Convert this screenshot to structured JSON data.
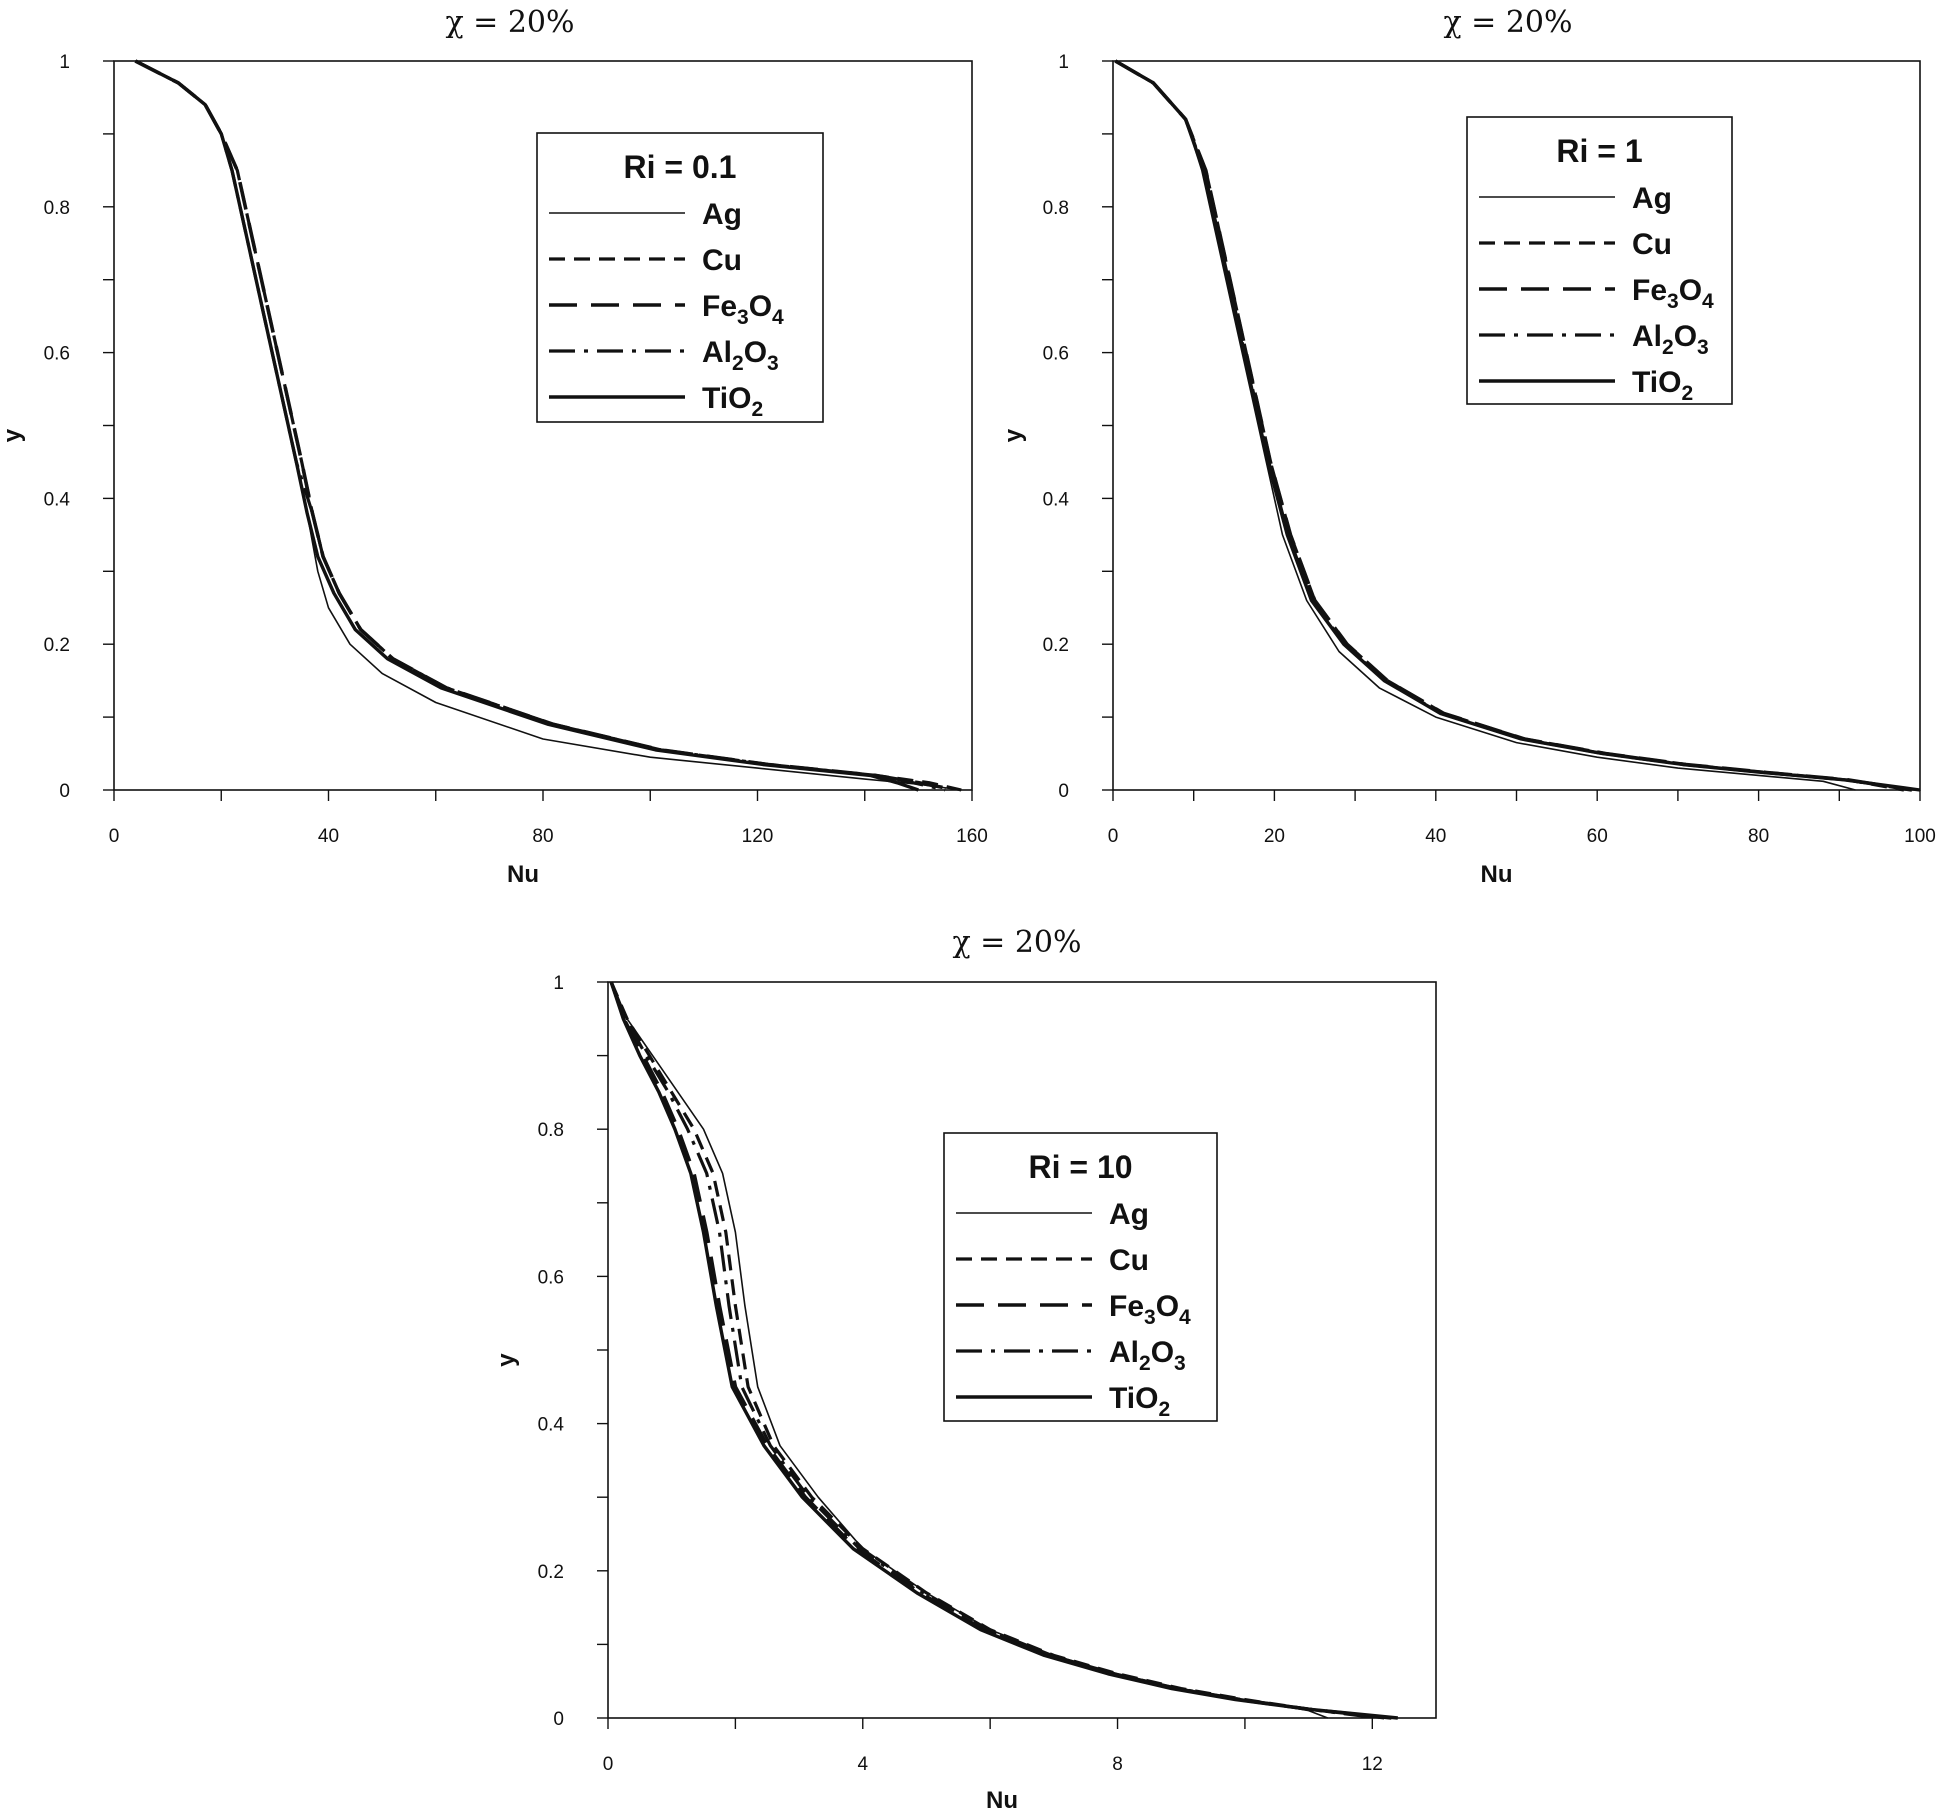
{
  "chart_data": [
    {
      "type": "line",
      "title": "χ = 20%",
      "xlabel": "Nu",
      "ylabel": "y",
      "xlim": [
        0,
        160
      ],
      "ylim": [
        0,
        1
      ],
      "xticks": [
        0,
        40,
        80,
        120,
        160
      ],
      "yticks": [
        0,
        0.2,
        0.4,
        0.6,
        0.8,
        1
      ],
      "legend_title": "Ri = 0.1",
      "legend_position": "top-right",
      "series": [
        {
          "name": "Ag",
          "style": "solid-thin",
          "x": [
            4,
            12,
            17,
            20,
            22,
            25,
            28,
            31,
            34,
            36,
            38,
            40,
            44,
            50,
            60,
            80,
            100,
            120,
            140,
            150,
            158
          ],
          "y": [
            1,
            0.97,
            0.94,
            0.9,
            0.85,
            0.75,
            0.65,
            0.55,
            0.45,
            0.38,
            0.3,
            0.25,
            0.2,
            0.16,
            0.12,
            0.07,
            0.045,
            0.03,
            0.015,
            0.008,
            0
          ]
        },
        {
          "name": "Cu",
          "style": "dashed",
          "x": [
            4,
            12,
            17,
            20,
            23,
            26,
            29,
            32,
            35,
            37,
            39,
            42,
            46,
            52,
            62,
            82,
            102,
            122,
            142,
            152,
            158
          ],
          "y": [
            1,
            0.97,
            0.94,
            0.9,
            0.85,
            0.75,
            0.65,
            0.55,
            0.45,
            0.38,
            0.32,
            0.27,
            0.22,
            0.18,
            0.14,
            0.09,
            0.055,
            0.035,
            0.02,
            0.01,
            0
          ]
        },
        {
          "name": "Fe3O4",
          "style": "long-dash",
          "x": [
            4,
            12,
            17,
            20,
            23,
            26,
            29,
            32,
            35,
            37,
            39,
            42,
            46,
            52,
            62,
            82,
            102,
            122,
            142,
            150,
            157
          ],
          "y": [
            1,
            0.97,
            0.94,
            0.9,
            0.85,
            0.75,
            0.65,
            0.55,
            0.45,
            0.38,
            0.32,
            0.27,
            0.22,
            0.18,
            0.14,
            0.09,
            0.055,
            0.035,
            0.02,
            0.01,
            0
          ]
        },
        {
          "name": "Al2O3",
          "style": "dash-dot",
          "x": [
            4,
            12,
            17,
            20,
            22,
            25,
            28,
            31,
            34,
            37,
            39,
            42,
            46,
            52,
            62,
            82,
            102,
            122,
            142,
            149,
            155
          ],
          "y": [
            1,
            0.97,
            0.94,
            0.9,
            0.85,
            0.75,
            0.65,
            0.55,
            0.45,
            0.38,
            0.32,
            0.27,
            0.22,
            0.18,
            0.14,
            0.09,
            0.055,
            0.035,
            0.02,
            0.01,
            0
          ]
        },
        {
          "name": "TiO2",
          "style": "solid-thick",
          "x": [
            4,
            12,
            17,
            20,
            22,
            25,
            28,
            31,
            34,
            36,
            38,
            41,
            45,
            51,
            61,
            81,
            101,
            121,
            141,
            146,
            150
          ],
          "y": [
            1,
            0.97,
            0.94,
            0.9,
            0.85,
            0.75,
            0.65,
            0.55,
            0.45,
            0.38,
            0.32,
            0.27,
            0.22,
            0.18,
            0.14,
            0.09,
            0.055,
            0.035,
            0.02,
            0.01,
            0
          ]
        }
      ]
    },
    {
      "type": "line",
      "title": "χ = 20%",
      "xlabel": "Nu",
      "ylabel": "y",
      "xlim": [
        0,
        100
      ],
      "ylim": [
        0,
        1
      ],
      "xticks": [
        0,
        20,
        40,
        60,
        80,
        100
      ],
      "yticks": [
        0,
        0.2,
        0.4,
        0.6,
        0.8,
        1
      ],
      "legend_title": "Ri = 1",
      "legend_position": "top-right",
      "series": [
        {
          "name": "Ag",
          "style": "solid-thin",
          "x": [
            0.3,
            5,
            9,
            11,
            13,
            15,
            17,
            19,
            21,
            24,
            28,
            33,
            40,
            50,
            60,
            70,
            80,
            88,
            92
          ],
          "y": [
            1,
            0.97,
            0.92,
            0.85,
            0.75,
            0.65,
            0.55,
            0.45,
            0.35,
            0.26,
            0.19,
            0.14,
            0.1,
            0.065,
            0.045,
            0.03,
            0.02,
            0.012,
            0
          ]
        },
        {
          "name": "Cu",
          "style": "dashed",
          "x": [
            0.3,
            5,
            9,
            11.5,
            13.5,
            15.5,
            17.5,
            19.5,
            22,
            25,
            29,
            34,
            41,
            51,
            61,
            71,
            81,
            91,
            98
          ],
          "y": [
            1,
            0.97,
            0.92,
            0.85,
            0.75,
            0.65,
            0.55,
            0.45,
            0.35,
            0.26,
            0.2,
            0.15,
            0.105,
            0.07,
            0.05,
            0.035,
            0.024,
            0.014,
            0
          ]
        },
        {
          "name": "Fe3O4",
          "style": "long-dash",
          "x": [
            0.3,
            5,
            9,
            11.5,
            13.5,
            15.5,
            17.5,
            19.5,
            22,
            25,
            29,
            34,
            41,
            51,
            61,
            71,
            81,
            91,
            99
          ],
          "y": [
            1,
            0.97,
            0.92,
            0.85,
            0.75,
            0.65,
            0.55,
            0.45,
            0.35,
            0.26,
            0.2,
            0.15,
            0.105,
            0.07,
            0.05,
            0.035,
            0.024,
            0.014,
            0
          ]
        },
        {
          "name": "Al2O3",
          "style": "dash-dot",
          "x": [
            0.3,
            5,
            9,
            11.3,
            13.3,
            15.3,
            17.3,
            19.3,
            21.7,
            24.7,
            28.7,
            33.7,
            40.7,
            50.7,
            60.7,
            70.7,
            80.7,
            90.7,
            99.5
          ],
          "y": [
            1,
            0.97,
            0.92,
            0.85,
            0.75,
            0.65,
            0.55,
            0.45,
            0.35,
            0.26,
            0.2,
            0.15,
            0.105,
            0.07,
            0.05,
            0.035,
            0.024,
            0.014,
            0
          ]
        },
        {
          "name": "TiO2",
          "style": "solid-thick",
          "x": [
            0.3,
            5,
            9,
            11.2,
            13.2,
            15.2,
            17.2,
            19.2,
            21.6,
            24.6,
            28.6,
            33.6,
            40.6,
            50.6,
            60.6,
            70.6,
            80.6,
            90.6,
            100
          ],
          "y": [
            1,
            0.97,
            0.92,
            0.85,
            0.75,
            0.65,
            0.55,
            0.45,
            0.35,
            0.26,
            0.2,
            0.15,
            0.105,
            0.07,
            0.05,
            0.035,
            0.024,
            0.014,
            0
          ]
        }
      ]
    },
    {
      "type": "line",
      "title": "χ = 20%",
      "xlabel": "Nu",
      "ylabel": "y",
      "xlim": [
        0,
        13
      ],
      "ylim": [
        0,
        1
      ],
      "xticks": [
        0,
        4,
        8,
        12
      ],
      "yticks": [
        0,
        0.2,
        0.4,
        0.6,
        0.8,
        1
      ],
      "legend_title": "Ri = 10",
      "legend_position": "center-right",
      "series": [
        {
          "name": "Ag",
          "style": "solid-thin",
          "x": [
            0.05,
            0.3,
            0.7,
            1.1,
            1.5,
            1.8,
            2,
            2.15,
            2.35,
            2.7,
            3.3,
            4,
            5,
            6,
            7,
            8,
            9,
            10,
            11,
            11.3
          ],
          "y": [
            1,
            0.95,
            0.9,
            0.85,
            0.8,
            0.74,
            0.66,
            0.56,
            0.45,
            0.37,
            0.3,
            0.23,
            0.17,
            0.12,
            0.085,
            0.06,
            0.04,
            0.025,
            0.01,
            0
          ]
        },
        {
          "name": "Cu",
          "style": "dashed",
          "x": [
            0.05,
            0.3,
            0.65,
            1,
            1.35,
            1.65,
            1.85,
            2,
            2.2,
            2.6,
            3.2,
            4,
            5,
            6,
            7,
            8,
            9,
            10,
            11,
            12.2
          ],
          "y": [
            1,
            0.95,
            0.9,
            0.85,
            0.8,
            0.74,
            0.66,
            0.56,
            0.45,
            0.37,
            0.3,
            0.23,
            0.17,
            0.12,
            0.085,
            0.06,
            0.04,
            0.025,
            0.012,
            0
          ]
        },
        {
          "name": "Fe3O4",
          "style": "long-dash",
          "x": [
            0.05,
            0.25,
            0.55,
            0.85,
            1.1,
            1.35,
            1.55,
            1.75,
            2,
            2.5,
            3.1,
            3.9,
            4.9,
            5.9,
            6.9,
            7.9,
            8.9,
            9.9,
            11,
            12.3
          ],
          "y": [
            1,
            0.95,
            0.9,
            0.85,
            0.8,
            0.74,
            0.66,
            0.56,
            0.45,
            0.37,
            0.3,
            0.23,
            0.17,
            0.12,
            0.085,
            0.06,
            0.04,
            0.025,
            0.012,
            0
          ]
        },
        {
          "name": "Al2O3",
          "style": "dash-dot",
          "x": [
            0.05,
            0.28,
            0.6,
            0.95,
            1.25,
            1.55,
            1.75,
            1.9,
            2.1,
            2.55,
            3.15,
            3.95,
            4.95,
            5.95,
            6.95,
            7.95,
            8.95,
            9.95,
            11,
            12.1
          ],
          "y": [
            1,
            0.95,
            0.9,
            0.85,
            0.8,
            0.74,
            0.66,
            0.56,
            0.45,
            0.37,
            0.3,
            0.23,
            0.17,
            0.12,
            0.085,
            0.06,
            0.04,
            0.025,
            0.012,
            0
          ]
        },
        {
          "name": "TiO2",
          "style": "solid-thick",
          "x": [
            0.05,
            0.24,
            0.5,
            0.8,
            1.05,
            1.3,
            1.5,
            1.7,
            1.95,
            2.45,
            3.05,
            3.85,
            4.85,
            5.85,
            6.85,
            7.85,
            8.85,
            9.85,
            11,
            12.4
          ],
          "y": [
            1,
            0.95,
            0.9,
            0.85,
            0.8,
            0.74,
            0.66,
            0.56,
            0.45,
            0.37,
            0.3,
            0.23,
            0.17,
            0.12,
            0.085,
            0.06,
            0.04,
            0.025,
            0.012,
            0
          ]
        }
      ]
    }
  ],
  "legend_labels": [
    {
      "base": "Ag",
      "parts": [
        [
          "Ag",
          false
        ]
      ]
    },
    {
      "base": "Cu",
      "parts": [
        [
          "Cu",
          false
        ]
      ]
    },
    {
      "base": "Fe3O4",
      "parts": [
        [
          "Fe",
          false
        ],
        [
          "3",
          true
        ],
        [
          "O",
          false
        ],
        [
          "4",
          true
        ]
      ]
    },
    {
      "base": "Al2O3",
      "parts": [
        [
          "Al",
          false
        ],
        [
          "2",
          true
        ],
        [
          "O",
          false
        ],
        [
          "3",
          true
        ]
      ]
    },
    {
      "base": "TiO2",
      "parts": [
        [
          "TiO",
          false
        ],
        [
          "2",
          true
        ]
      ]
    }
  ],
  "colors": {
    "ink": "#111111",
    "background": "#ffffff"
  }
}
